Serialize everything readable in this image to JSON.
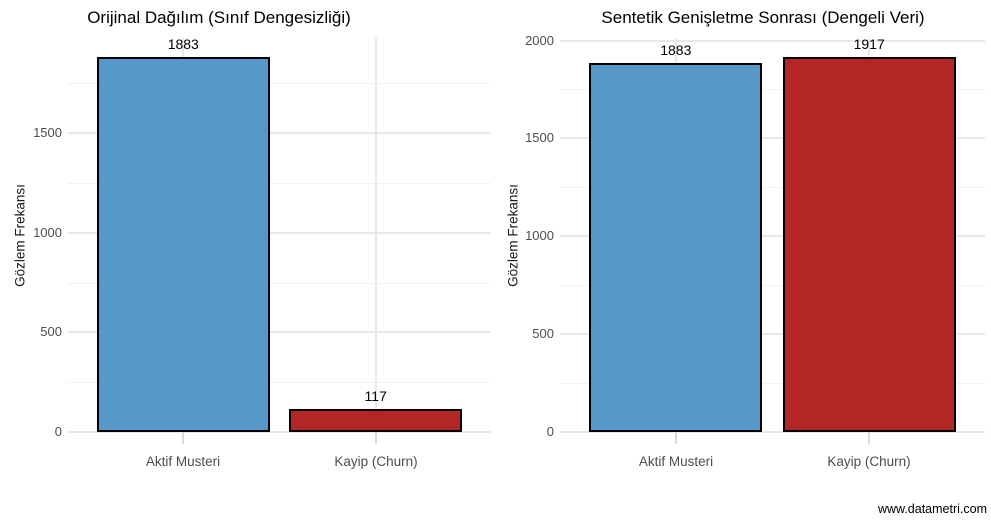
{
  "figure": {
    "watermark": "www.datametri.com"
  },
  "chart_data": [
    {
      "type": "bar",
      "title": "Orijinal Dağılım (Sınıf Dengesizliği)",
      "xlabel": "",
      "ylabel": "Gözlem Frekansı",
      "categories": [
        "Aktif Musteri",
        "Kayip (Churn)"
      ],
      "values": [
        1883,
        117
      ],
      "bar_labels": [
        "1883",
        "117"
      ],
      "bar_colors": [
        "#5699C8",
        "#B22626"
      ],
      "bar_border_color": "#000000",
      "yticks": [
        0,
        500,
        1000,
        1500
      ],
      "yticks_minor": [
        250,
        750,
        1250,
        1750
      ],
      "ylim": [
        0,
        1977
      ],
      "grid": "on",
      "legend": "none"
    },
    {
      "type": "bar",
      "title": "Sentetik Genişletme Sonrası (Dengeli Veri)",
      "xlabel": "",
      "ylabel": "Gözlem Frekansı",
      "categories": [
        "Aktif Musteri",
        "Kayip (Churn)"
      ],
      "values": [
        1883,
        1917
      ],
      "bar_labels": [
        "1883",
        "1917"
      ],
      "bar_colors": [
        "#5699C8",
        "#B22626"
      ],
      "bar_border_color": "#000000",
      "yticks": [
        0,
        500,
        1000,
        1500,
        2000
      ],
      "yticks_minor": [
        250,
        750,
        1250,
        1750
      ],
      "ylim": [
        0,
        2013
      ],
      "grid": "on",
      "legend": "none"
    }
  ]
}
